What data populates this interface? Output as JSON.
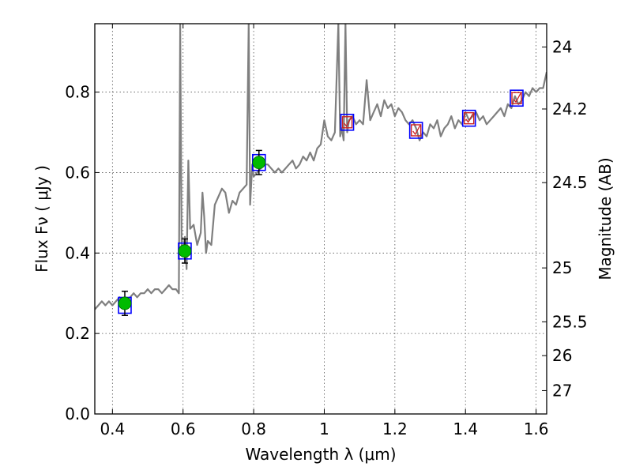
{
  "chart_data": {
    "type": "line",
    "xlabel": "Wavelength  λ (μm)",
    "ylabel": "Flux  Fν  ( μJy )",
    "y2label": "Magnitude (AB)",
    "xlim": [
      0.35,
      1.63
    ],
    "ylim": [
      0.0,
      0.97
    ],
    "grid": true,
    "x_ticks": [
      0.4,
      0.6,
      0.8,
      1.0,
      1.2,
      1.4,
      1.6
    ],
    "x_tick_labels": [
      "0.4",
      "0.6",
      "0.8",
      "1",
      "1.2",
      "1.4",
      "1.6"
    ],
    "y_ticks": [
      0.0,
      0.2,
      0.4,
      0.6,
      0.8
    ],
    "y_tick_labels": [
      "0.0",
      "0.2",
      "0.4",
      "0.6",
      "0.8"
    ],
    "y2_ticks": [
      {
        "label": "24",
        "flux": 0.912
      },
      {
        "label": "24.2",
        "flux": 0.758
      },
      {
        "label": "24.5",
        "flux": 0.575
      },
      {
        "label": "25",
        "flux": 0.363
      },
      {
        "label": "25.5",
        "flux": 0.229
      },
      {
        "label": "26",
        "flux": 0.145
      },
      {
        "label": "27",
        "flux": 0.058
      }
    ],
    "spectrum": {
      "color": "#7f7f7f",
      "x": [
        0.35,
        0.36,
        0.37,
        0.38,
        0.39,
        0.4,
        0.41,
        0.42,
        0.43,
        0.44,
        0.45,
        0.46,
        0.47,
        0.48,
        0.49,
        0.5,
        0.51,
        0.52,
        0.53,
        0.54,
        0.55,
        0.56,
        0.57,
        0.58,
        0.588,
        0.592,
        0.596,
        0.6,
        0.605,
        0.61,
        0.615,
        0.62,
        0.63,
        0.64,
        0.65,
        0.655,
        0.66,
        0.665,
        0.67,
        0.68,
        0.69,
        0.7,
        0.71,
        0.72,
        0.73,
        0.74,
        0.75,
        0.76,
        0.77,
        0.78,
        0.786,
        0.79,
        0.796,
        0.8,
        0.81,
        0.82,
        0.83,
        0.84,
        0.85,
        0.86,
        0.87,
        0.88,
        0.89,
        0.9,
        0.91,
        0.92,
        0.93,
        0.94,
        0.95,
        0.96,
        0.97,
        0.98,
        0.99,
        1.0,
        1.01,
        1.02,
        1.03,
        1.04,
        1.045,
        1.05,
        1.055,
        1.06,
        1.065,
        1.07,
        1.08,
        1.09,
        1.1,
        1.11,
        1.12,
        1.13,
        1.14,
        1.15,
        1.16,
        1.17,
        1.18,
        1.19,
        1.2,
        1.21,
        1.22,
        1.23,
        1.24,
        1.25,
        1.26,
        1.27,
        1.28,
        1.29,
        1.3,
        1.31,
        1.32,
        1.33,
        1.34,
        1.35,
        1.36,
        1.37,
        1.38,
        1.39,
        1.4,
        1.41,
        1.42,
        1.43,
        1.44,
        1.45,
        1.46,
        1.47,
        1.48,
        1.49,
        1.5,
        1.51,
        1.52,
        1.53,
        1.54,
        1.55,
        1.56,
        1.57,
        1.58,
        1.59,
        1.6,
        1.61,
        1.62,
        1.63
      ],
      "y": [
        0.26,
        0.27,
        0.28,
        0.27,
        0.28,
        0.27,
        0.28,
        0.29,
        0.28,
        0.28,
        0.29,
        0.3,
        0.29,
        0.3,
        0.3,
        0.31,
        0.3,
        0.31,
        0.31,
        0.3,
        0.31,
        0.32,
        0.31,
        0.31,
        0.3,
        0.97,
        0.42,
        0.4,
        0.44,
        0.36,
        0.63,
        0.46,
        0.47,
        0.42,
        0.45,
        0.55,
        0.49,
        0.4,
        0.43,
        0.42,
        0.52,
        0.54,
        0.56,
        0.55,
        0.5,
        0.53,
        0.52,
        0.55,
        0.56,
        0.57,
        0.97,
        0.52,
        0.62,
        0.59,
        0.6,
        0.61,
        0.62,
        0.62,
        0.61,
        0.6,
        0.61,
        0.6,
        0.61,
        0.62,
        0.63,
        0.61,
        0.62,
        0.64,
        0.63,
        0.65,
        0.63,
        0.66,
        0.67,
        0.73,
        0.69,
        0.68,
        0.7,
        0.97,
        0.69,
        0.71,
        0.68,
        0.97,
        0.7,
        0.73,
        0.74,
        0.72,
        0.73,
        0.72,
        0.83,
        0.73,
        0.75,
        0.77,
        0.74,
        0.78,
        0.76,
        0.77,
        0.74,
        0.76,
        0.75,
        0.73,
        0.72,
        0.73,
        0.71,
        0.68,
        0.7,
        0.69,
        0.72,
        0.71,
        0.73,
        0.69,
        0.71,
        0.72,
        0.74,
        0.71,
        0.73,
        0.72,
        0.75,
        0.73,
        0.74,
        0.75,
        0.73,
        0.74,
        0.72,
        0.73,
        0.74,
        0.75,
        0.76,
        0.74,
        0.77,
        0.76,
        0.79,
        0.77,
        0.78,
        0.8,
        0.79,
        0.81,
        0.8,
        0.81,
        0.81,
        0.85
      ]
    },
    "model_points": {
      "marker": "square",
      "color": "#0000ff",
      "x": [
        0.435,
        0.605,
        0.815,
        1.065,
        1.26,
        1.41,
        1.545
      ],
      "y": [
        0.27,
        0.405,
        0.625,
        0.725,
        0.705,
        0.735,
        0.785
      ]
    },
    "detections": {
      "marker": "circle",
      "color": "#00bb00",
      "x": [
        0.435,
        0.605,
        0.815
      ],
      "y": [
        0.275,
        0.405,
        0.625
      ],
      "err_y": [
        0.03,
        0.03,
        0.03
      ]
    },
    "upper_limits": {
      "marker": "check",
      "color": "#cc2222",
      "x": [
        1.065,
        1.26,
        1.41,
        1.545
      ],
      "y": [
        0.725,
        0.705,
        0.735,
        0.785
      ]
    }
  }
}
